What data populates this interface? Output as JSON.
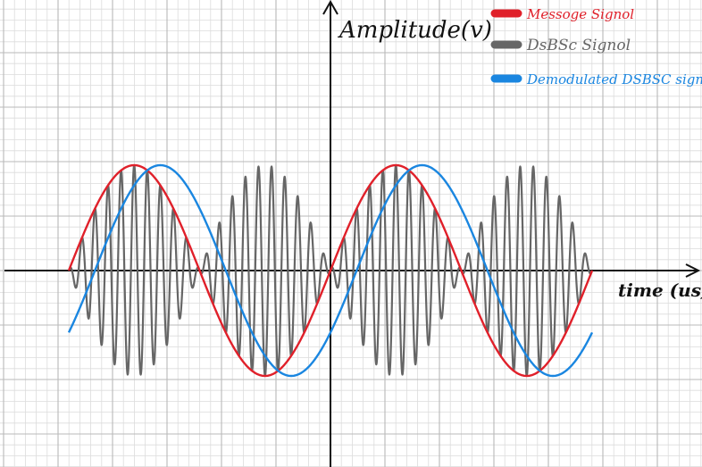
{
  "chart_data": {
    "type": "line",
    "title": "",
    "xlabel": "time (us)",
    "ylabel": "Amplitude(v)",
    "xlim": [
      -10,
      10
    ],
    "ylim": [
      -1.9,
      2.75
    ],
    "grid": true,
    "legend_position": "top-right",
    "series": [
      {
        "name": "Message Signal",
        "legend_text": "Messoge  Signol",
        "color": "#e0202a",
        "function": "sine",
        "amplitude": 1,
        "period_us": 10,
        "phase_us": 0,
        "x_start": -10,
        "x_end": 10,
        "key_points": [
          [
            -10,
            0
          ],
          [
            -7.5,
            1
          ],
          [
            -5,
            0
          ],
          [
            -2.5,
            -1
          ],
          [
            0,
            0
          ],
          [
            2.5,
            1
          ],
          [
            5,
            0
          ],
          [
            7.5,
            -1
          ],
          [
            10,
            0
          ]
        ]
      },
      {
        "name": "DSBSC Signal",
        "legend_text": "DsBSc  Signol",
        "color": "#666666",
        "function": "sine_times_carrier",
        "amplitude": 1,
        "period_us": 10,
        "carrier_period_us": 0.5,
        "x_start": -10,
        "x_end": 10,
        "envelope_peak": 1
      },
      {
        "name": "Demodulated DSBSC signal",
        "legend_text": "Demodulated  DSBSC signal",
        "color": "#1a86e0",
        "function": "sine",
        "amplitude": 1,
        "period_us": 10,
        "phase_us": 1,
        "x_start": -10,
        "x_end": 10,
        "key_points": [
          [
            -10,
            -0.59
          ],
          [
            -6.5,
            1
          ],
          [
            -4,
            0
          ],
          [
            -1.5,
            -1
          ],
          [
            1,
            0
          ],
          [
            3.5,
            1
          ],
          [
            6,
            0
          ],
          [
            8.5,
            -1
          ],
          [
            10,
            -0.59
          ]
        ]
      }
    ]
  }
}
